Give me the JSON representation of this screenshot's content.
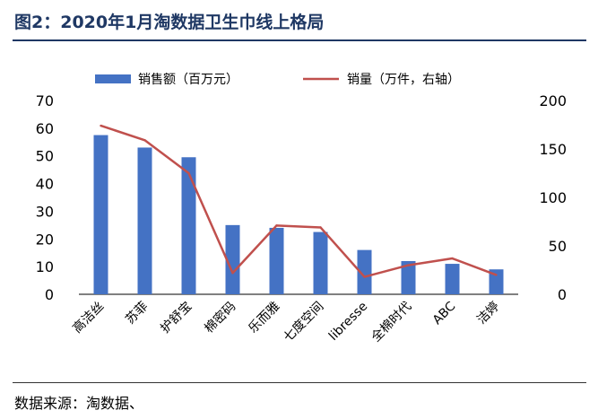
{
  "header": {
    "title": "图2：2020年1月淘数据卫生巾线上格局"
  },
  "footer": {
    "source": "数据来源：淘数据、"
  },
  "colors": {
    "bar": "#4472c4",
    "line": "#c0504d",
    "title": "#1f3864"
  },
  "chart_data": {
    "type": "bar",
    "categories": [
      "高洁丝",
      "苏菲",
      "护舒宝",
      "棉密码",
      "乐而雅",
      "七度空间",
      "libresse",
      "全棉时代",
      "ABC",
      "洁婷"
    ],
    "series": [
      {
        "name": "销售额（百万元）",
        "type": "bar",
        "axis": "left",
        "values": [
          57.5,
          53,
          49.5,
          25,
          24,
          22.5,
          16,
          12,
          11,
          9
        ]
      },
      {
        "name": "销量（万件，右轴）",
        "type": "line",
        "axis": "right",
        "values": [
          174,
          159,
          125,
          22,
          71,
          69,
          18,
          30,
          37,
          20
        ]
      }
    ],
    "y_left": {
      "lim": [
        0,
        70
      ],
      "ticks": [
        0,
        10,
        20,
        30,
        40,
        50,
        60,
        70
      ]
    },
    "y_right": {
      "lim": [
        0,
        200
      ],
      "ticks": [
        0,
        50,
        100,
        150,
        200
      ]
    },
    "legend": "top",
    "grid": false
  }
}
